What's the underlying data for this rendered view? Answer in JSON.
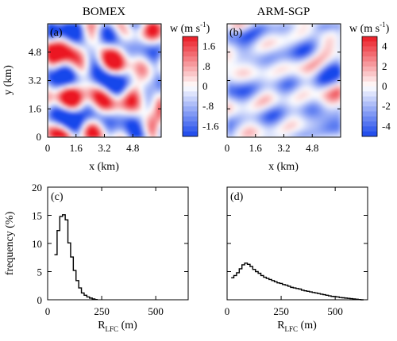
{
  "chart_data": [
    {
      "type": "heatmap",
      "panel": "(a)",
      "title": "BOMEX",
      "xlabel": "x (km)",
      "ylabel": "y (km)",
      "xticks": [
        "0",
        "1.6",
        "3.2",
        "4.8"
      ],
      "yticks": [
        "0",
        "1.6",
        "3.2",
        "4.8"
      ],
      "xlim": [
        0,
        6.4
      ],
      "ylim": [
        0,
        6.4
      ],
      "colorbar": {
        "label": "w (m s",
        "label_sup": "-1",
        "label_close": ")",
        "range": [
          -2,
          2
        ],
        "ticks": [
          {
            "label": "1.6",
            "value": 1.6
          },
          {
            "label": ".8",
            "value": 0.8
          },
          {
            "label": "0",
            "value": 0
          },
          {
            "label": "-.8",
            "value": -0.8
          },
          {
            "label": "-1.6",
            "value": -1.6
          }
        ]
      },
      "field": {
        "scale": 0.9,
        "bias": -0.05,
        "seed": 3
      }
    },
    {
      "type": "heatmap",
      "panel": "(b)",
      "title": "ARM-SGP",
      "xlabel": "x (km)",
      "ylabel": "",
      "xticks": [
        "0",
        "1.6",
        "3.2",
        "4.8"
      ],
      "yticks": [],
      "xlim": [
        0,
        6.4
      ],
      "ylim": [
        0,
        6.4
      ],
      "colorbar": {
        "label": "w (m s",
        "label_sup": "-1",
        "label_close": ")",
        "range": [
          -5,
          5
        ],
        "ticks": [
          {
            "label": "4",
            "value": 4
          },
          {
            "label": "2",
            "value": 2
          },
          {
            "label": "0",
            "value": 0
          },
          {
            "label": "-2",
            "value": -2
          },
          {
            "label": "-4",
            "value": -4
          }
        ]
      },
      "field": {
        "scale": 0.45,
        "bias": -0.25,
        "seed": 11
      }
    },
    {
      "type": "line",
      "subtype": "step-histogram",
      "panel": "(c)",
      "xlabel": "R",
      "xlabel_sub": "LFC",
      "xlabel_unit": " (m)",
      "ylabel": "frequency (%)",
      "xlim": [
        0,
        650
      ],
      "ylim": [
        0,
        20
      ],
      "xticks": [
        0,
        250,
        500
      ],
      "yticks": [
        0,
        5,
        10,
        15,
        20
      ],
      "bin_width": 12.5,
      "series": [
        {
          "x": [
            37.5,
            50,
            62.5,
            75,
            87.5,
            100,
            112.5,
            125,
            137.5,
            150,
            162.5,
            175,
            187.5,
            200,
            212.5,
            225
          ],
          "values": [
            8.0,
            12.3,
            14.8,
            15.1,
            14.2,
            10.1,
            7.6,
            5.2,
            3.4,
            2.1,
            1.2,
            0.8,
            0.5,
            0.3,
            0.15,
            0.05
          ]
        }
      ]
    },
    {
      "type": "line",
      "subtype": "step-histogram",
      "panel": "(d)",
      "xlabel": "R",
      "xlabel_sub": "LFC",
      "xlabel_unit": " (m)",
      "ylabel": "",
      "xlim": [
        0,
        650
      ],
      "ylim": [
        0,
        20
      ],
      "xticks": [
        0,
        250,
        500
      ],
      "yticks": [
        0,
        5,
        10,
        15,
        20
      ],
      "bin_width": 12.5,
      "series": [
        {
          "x": [
            25,
            37.5,
            50,
            62.5,
            75,
            87.5,
            100,
            112.5,
            125,
            137.5,
            150,
            162.5,
            175,
            187.5,
            200,
            212.5,
            225,
            237.5,
            250,
            262.5,
            275,
            287.5,
            300,
            312.5,
            325,
            337.5,
            350,
            362.5,
            375,
            387.5,
            400,
            412.5,
            425,
            437.5,
            450,
            462.5,
            475,
            487.5,
            500,
            512.5,
            525,
            537.5,
            550,
            562.5,
            575,
            587.5,
            600,
            612.5,
            625
          ],
          "values": [
            3.9,
            4.3,
            4.8,
            5.5,
            6.2,
            6.5,
            6.3,
            5.9,
            5.4,
            5.0,
            4.7,
            4.3,
            4.0,
            3.8,
            3.6,
            3.4,
            3.2,
            3.0,
            2.9,
            2.7,
            2.6,
            2.4,
            2.2,
            2.1,
            2.0,
            1.9,
            1.7,
            1.6,
            1.5,
            1.4,
            1.3,
            1.2,
            1.1,
            1.0,
            0.9,
            0.8,
            0.7,
            0.6,
            0.55,
            0.5,
            0.4,
            0.35,
            0.3,
            0.25,
            0.2,
            0.15,
            0.1,
            0.05,
            0.0
          ]
        }
      ]
    }
  ]
}
